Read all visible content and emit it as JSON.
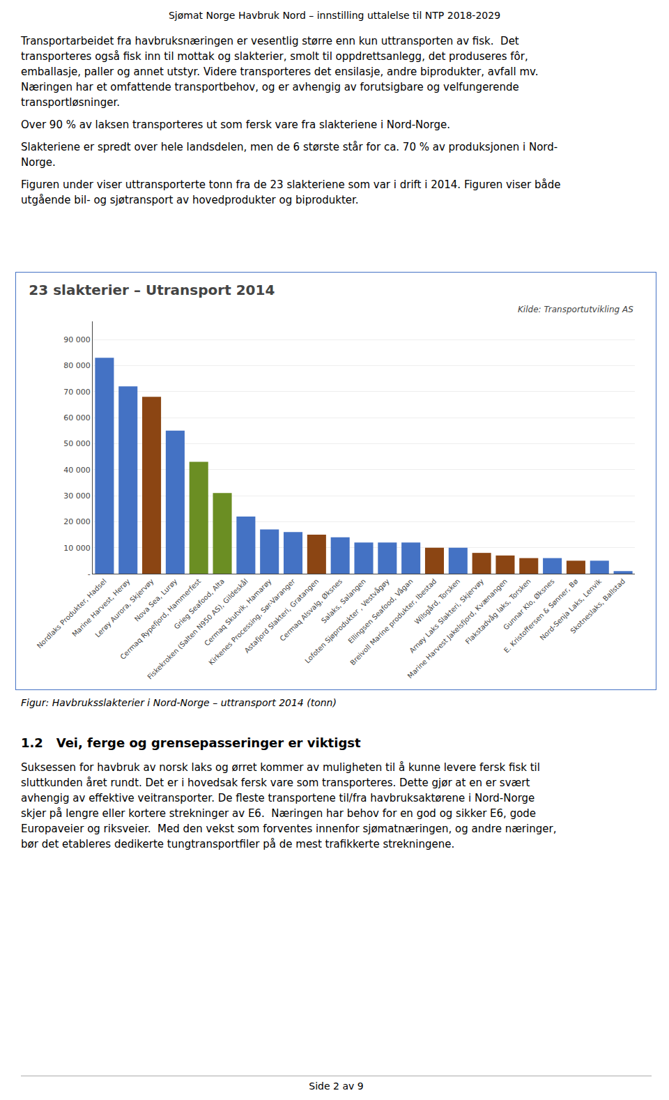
{
  "page_text": {
    "title": "Sjømat Norge Havbruk Nord – innstilling uttalelse til NTP 2018-2029",
    "paragraphs": [
      [
        "Transportarbeidet fra havbruksnæringen er vesentlig større enn kun uttransporten av fisk.  Det",
        "transporteres også fisk inn til mottak og slakterier, smolt til oppdrettsanlegg, det produseres fôr,",
        "emballasje, paller og annet utstyr. Videre transporteres det ensilasje, andre biprodukter, avfall mv.",
        "Næringen har et omfattende transportbehov, og er avhengig av forutsigbare og velfungerende",
        "transportløsninger."
      ],
      [
        "Over 90 % av laksen transporteres ut som fersk vare fra slakteriene i Nord-Norge."
      ],
      [
        "Slakteriene er spredt over hele landsdelen, men de 6 største står for ca. 70 % av produksjonen i Nord-",
        "Norge."
      ],
      [
        "Figuren under viser uttransporterte tonn fra de 23 slakteriene som var i drift i 2014. Figuren viser både",
        "utgående bil- og sjøtransport av hovedprodukter og biprodukter."
      ]
    ],
    "caption": "Figur: Havbruksslakterier i Nord-Norge – uttransport 2014 (tonn)",
    "section_title": "1.2   Vei, ferge og grensepasseringer er viktigst",
    "closing_paragraph": [
      "Suksessen for havbruk av norsk laks og ørret kommer av muligheten til å kunne levere fersk fisk til",
      "sluttkunden året rundt. Det er i hovedsak fersk vare som transporteres. Dette gjør at en er svært",
      "avhengig av effektive veitransporter. De fleste transportene til/fra havbruksaktørene i Nord-Norge",
      "skjer på lengre eller kortere strekninger av E6.  Næringen har behov for en god og sikker E6, gode",
      "Europaveier og riksveier.  Med den vekst som forventes innenfor sjømatnæringen, og andre næringer,",
      "bør det etableres dedikerte tungtransportfiler på de mest trafikkerte strekningene."
    ],
    "footer": "Side 2 av 9"
  },
  "chart_data": {
    "type": "bar",
    "title": "23 slakterier – Utransport 2014",
    "annotations": [
      "Kilde: Transportutvikling AS"
    ],
    "categories": [
      "Nordlaks Produkter, Hadsel",
      "Marine Harvest, Herøy",
      "Lerøy Aurora, Skjervøy",
      "Nova Sea, Lurøy",
      "Cermaq Rypefjord, Hammerfest",
      "Grieg Seafood, Alta",
      "Fiskekroken (Salten N950 AS), Gildeskål",
      "Cermaq Skutvik, Hamarøy",
      "Kirkenes Processing, Sør-Varanger",
      "Astafjord Slakteri, Gratangen",
      "Cermaq Alsvalg, Øksnes",
      "Salaks, Salangen",
      "Lofoten Sjøprodukter , Vestvågøy",
      "Ellingsen Seafood, Vågan",
      "Breivoll Marine produkter, Ibestad",
      "Wilsgård, Torsken",
      "Arnøy Laks Slakteri, Skjervøy",
      "Marine Harvest Jakelsfjord, Kvænangen",
      "Flakstadvåg laks, Torsken",
      "Gunnar Klo, Øksnes",
      "E. Kristoffersen & Sønner, Bø",
      "Nord-Senja Laks, Lenvik",
      "Skotneslaks, Ballstad"
    ],
    "values": [
      83000,
      72000,
      68000,
      55000,
      43000,
      31000,
      22000,
      17000,
      16000,
      15000,
      14000,
      12000,
      12000,
      12000,
      10000,
      10000,
      8000,
      7000,
      6000,
      6000,
      5000,
      5000,
      1000
    ],
    "colors": [
      "#4472C4",
      "#4472C4",
      "#8B4513",
      "#4472C4",
      "#6B8E23",
      "#6B8E23",
      "#4472C4",
      "#4472C4",
      "#4472C4",
      "#8B4513",
      "#4472C4",
      "#4472C4",
      "#4472C4",
      "#4472C4",
      "#8B4513",
      "#4472C4",
      "#8B4513",
      "#8B4513",
      "#8B4513",
      "#4472C4",
      "#8B4513",
      "#4472C4",
      "#4472C4"
    ],
    "ylim": [
      0,
      97000
    ],
    "yticks": [
      {
        "value": 0,
        "label": "-"
      },
      {
        "value": 10000,
        "label": "10 000"
      },
      {
        "value": 20000,
        "label": "20 000"
      },
      {
        "value": 30000,
        "label": "30 000"
      },
      {
        "value": 40000,
        "label": "40 000"
      },
      {
        "value": 50000,
        "label": "50 000"
      },
      {
        "value": 60000,
        "label": "60 000"
      },
      {
        "value": 70000,
        "label": "70 000"
      },
      {
        "value": 80000,
        "label": "80 000"
      },
      {
        "value": 90000,
        "label": "90 000"
      }
    ],
    "grid": true
  }
}
